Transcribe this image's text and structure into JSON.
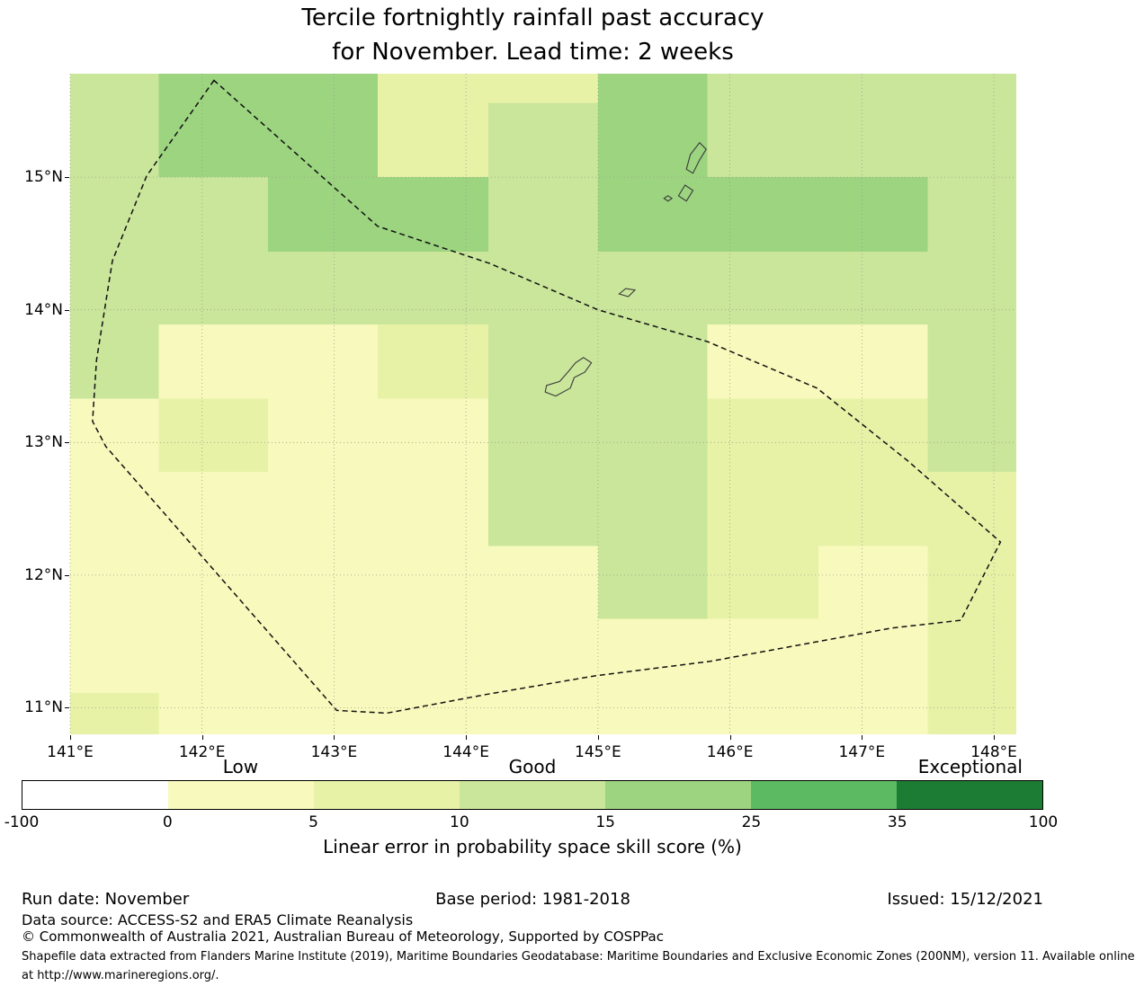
{
  "title": {
    "line1": "Tercile fortnightly rainfall past accuracy",
    "line2": "for November. Lead time: 2 weeks"
  },
  "chart_data": {
    "type": "heatmap",
    "title": "Tercile fortnightly rainfall past accuracy for November. Lead time: 2 weeks",
    "lon_range": [
      141.0,
      148.17
    ],
    "lat_range": [
      10.8,
      15.78
    ],
    "x_ticks": [
      {
        "value": 141,
        "label": "141°E"
      },
      {
        "value": 142,
        "label": "142°E"
      },
      {
        "value": 143,
        "label": "143°E"
      },
      {
        "value": 144,
        "label": "144°E"
      },
      {
        "value": 145,
        "label": "145°E"
      },
      {
        "value": 146,
        "label": "146°E"
      },
      {
        "value": 147,
        "label": "147°E"
      },
      {
        "value": 148,
        "label": "148°E"
      }
    ],
    "y_ticks": [
      {
        "value": 11,
        "label": "11°N"
      },
      {
        "value": 12,
        "label": "12°N"
      },
      {
        "value": 13,
        "label": "13°N"
      },
      {
        "value": 14,
        "label": "14°N"
      },
      {
        "value": 15,
        "label": "15°N"
      }
    ],
    "lon_edges": [
      141.0,
      141.67,
      142.5,
      143.33,
      144.17,
      145.0,
      145.83,
      146.67,
      147.5,
      148.17
    ],
    "lat_edges": [
      15.78,
      15.56,
      15.0,
      14.44,
      13.89,
      13.33,
      12.78,
      12.22,
      11.67,
      11.11,
      10.8
    ],
    "grid_values": [
      [
        12.5,
        20.0,
        20.0,
        7.5,
        7.5,
        20.0,
        12.5,
        12.5,
        12.5
      ],
      [
        12.5,
        20.0,
        20.0,
        7.5,
        12.5,
        20.0,
        12.5,
        12.5,
        12.5
      ],
      [
        12.5,
        12.5,
        20.0,
        20.0,
        12.5,
        20.0,
        20.0,
        20.0,
        12.5
      ],
      [
        12.5,
        12.5,
        12.5,
        12.5,
        12.5,
        12.5,
        12.5,
        12.5,
        12.5
      ],
      [
        12.5,
        2.5,
        2.5,
        7.5,
        12.5,
        12.5,
        2.5,
        2.5,
        12.5
      ],
      [
        2.5,
        7.5,
        2.5,
        2.5,
        12.5,
        12.5,
        7.5,
        7.5,
        12.5
      ],
      [
        2.5,
        2.5,
        2.5,
        2.5,
        12.5,
        12.5,
        7.5,
        7.5,
        7.5
      ],
      [
        2.5,
        2.5,
        2.5,
        2.5,
        2.5,
        12.5,
        7.5,
        2.5,
        7.5
      ],
      [
        2.5,
        2.5,
        2.5,
        2.5,
        2.5,
        2.5,
        2.5,
        2.5,
        7.5
      ],
      [
        7.5,
        2.5,
        2.5,
        2.5,
        2.5,
        2.5,
        2.5,
        2.5,
        7.5
      ]
    ],
    "colorbar": {
      "label": "Linear error in probability space skill score (%)",
      "thresholds": [
        -100,
        0,
        5,
        10,
        15,
        25,
        35,
        100
      ],
      "tick_labels": [
        "-100",
        "0",
        "5",
        "10",
        "15",
        "25",
        "35",
        "100"
      ],
      "colors": [
        "#ffffff",
        "#f8f9bc",
        "#e7f2a7",
        "#c9e69b",
        "#9cd480",
        "#5cbb62",
        "#1d7c33"
      ],
      "qualitative": [
        {
          "label": "Low",
          "bin_index": 1
        },
        {
          "label": "Good",
          "bin_index": 3
        },
        {
          "label": "Exceptional",
          "bin_index": 6
        }
      ]
    },
    "eez_boundary": [
      [
        142.09,
        15.73
      ],
      [
        141.58,
        15.01
      ],
      [
        141.32,
        14.37
      ],
      [
        141.2,
        13.62
      ],
      [
        141.17,
        13.16
      ],
      [
        141.27,
        12.97
      ],
      [
        143.02,
        10.98
      ],
      [
        143.4,
        10.96
      ],
      [
        144.15,
        11.1
      ],
      [
        144.97,
        11.24
      ],
      [
        145.85,
        11.35
      ],
      [
        147.22,
        11.6
      ],
      [
        147.75,
        11.66
      ],
      [
        148.05,
        12.25
      ],
      [
        147.35,
        12.86
      ],
      [
        146.66,
        13.41
      ],
      [
        145.83,
        13.76
      ],
      [
        145.0,
        14.0
      ],
      [
        144.18,
        14.35
      ],
      [
        143.33,
        14.63
      ]
    ],
    "islands": [
      {
        "name": "saipan",
        "points": [
          [
            145.77,
            15.26
          ],
          [
            145.82,
            15.21
          ],
          [
            145.77,
            15.13
          ],
          [
            145.72,
            15.03
          ],
          [
            145.67,
            15.06
          ],
          [
            145.7,
            15.17
          ]
        ]
      },
      {
        "name": "tinian",
        "points": [
          [
            145.66,
            14.94
          ],
          [
            145.72,
            14.9
          ],
          [
            145.67,
            14.82
          ],
          [
            145.61,
            14.86
          ]
        ]
      },
      {
        "name": "aguijan",
        "points": [
          [
            145.53,
            14.86
          ],
          [
            145.56,
            14.84
          ],
          [
            145.53,
            14.82
          ],
          [
            145.5,
            14.84
          ]
        ]
      },
      {
        "name": "rota",
        "points": [
          [
            145.16,
            14.12
          ],
          [
            145.21,
            14.16
          ],
          [
            145.28,
            14.15
          ],
          [
            145.23,
            14.1
          ]
        ]
      },
      {
        "name": "guam",
        "points": [
          [
            144.89,
            13.64
          ],
          [
            144.95,
            13.6
          ],
          [
            144.9,
            13.53
          ],
          [
            144.82,
            13.49
          ],
          [
            144.79,
            13.41
          ],
          [
            144.68,
            13.35
          ],
          [
            144.6,
            13.38
          ],
          [
            144.61,
            13.43
          ],
          [
            144.71,
            13.46
          ],
          [
            144.78,
            13.54
          ],
          [
            144.83,
            13.6
          ]
        ]
      }
    ]
  },
  "footer": {
    "run_date": "Run date: November",
    "base_period": "Base period: 1981-2018",
    "issued": "Issued: 15/12/2021",
    "data_source": "Data source: ACCESS-S2 and ERA5 Climate Reanalysis",
    "copyright": "© Commonwealth of Australia 2021, Australian Bureau of Meteorology, Supported by COSPPac",
    "shapefile_line1": "Shapefile data extracted from Flanders Marine Institute (2019), Maritime Boundaries Geodatabase: Maritime Boundaries and Exclusive Economic Zones (200NM), version 11. Available online",
    "shapefile_line2": "at http://www.marineregions.org/."
  }
}
